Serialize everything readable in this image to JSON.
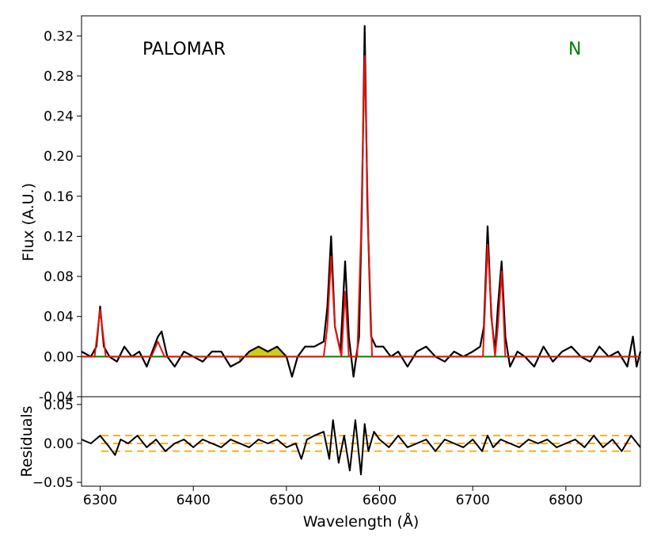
{
  "chart_data": [
    {
      "type": "line",
      "panel": "main",
      "xlabel": "",
      "ylabel": "Flux (A.U.)",
      "xlim": [
        6280,
        6880
      ],
      "ylim": [
        -0.04,
        0.34
      ],
      "yticks": [
        -0.04,
        0.0,
        0.04,
        0.08,
        0.12,
        0.16,
        0.2,
        0.24,
        0.28,
        0.32
      ],
      "ytick_labels": [
        "-0.04",
        "0.00",
        "0.04",
        "0.08",
        "0.12",
        "0.16",
        "0.20",
        "0.24",
        "0.28",
        "0.32"
      ],
      "annotations": [
        {
          "text": "PALOMAR",
          "color": "#000000"
        },
        {
          "text": "N",
          "color": "#008000"
        }
      ],
      "masked_region": {
        "x_range": [
          6450,
          6500
        ],
        "fill_color": "#c8c800",
        "edge_color": "#808000"
      },
      "series": [
        {
          "role": "observed",
          "color": "#000000",
          "x": [
            6280,
            6290,
            6296,
            6300,
            6304,
            6310,
            6318,
            6326,
            6334,
            6342,
            6350,
            6356,
            6362,
            6366,
            6372,
            6380,
            6390,
            6400,
            6410,
            6420,
            6430,
            6440,
            6450,
            6460,
            6470,
            6480,
            6490,
            6500,
            6506,
            6512,
            6520,
            6530,
            6540,
            6544,
            6548,
            6552,
            6558,
            6563,
            6567,
            6572,
            6578,
            6581,
            6584,
            6587,
            6591,
            6596,
            6604,
            6612,
            6620,
            6630,
            6640,
            6650,
            6660,
            6670,
            6680,
            6690,
            6700,
            6708,
            6712,
            6716,
            6720,
            6724,
            6727,
            6731,
            6735,
            6740,
            6748,
            6756,
            6766,
            6776,
            6786,
            6796,
            6806,
            6816,
            6826,
            6836,
            6846,
            6856,
            6866,
            6872,
            6876,
            6880
          ],
          "y": [
            0.005,
            0.0,
            0.01,
            0.05,
            0.01,
            0.0,
            -0.005,
            0.01,
            0.0,
            0.005,
            -0.01,
            0.005,
            0.02,
            0.025,
            0.0,
            -0.01,
            0.005,
            0.0,
            -0.005,
            0.005,
            0.005,
            -0.01,
            -0.005,
            0.005,
            0.01,
            0.005,
            0.01,
            0.0,
            -0.02,
            0.0,
            0.01,
            0.01,
            0.015,
            0.05,
            0.12,
            0.03,
            0.005,
            0.095,
            0.02,
            -0.02,
            0.02,
            0.15,
            0.33,
            0.15,
            0.02,
            0.01,
            0.01,
            0.0,
            0.005,
            -0.01,
            0.005,
            0.01,
            0.0,
            -0.005,
            0.005,
            0.0,
            0.005,
            0.01,
            0.03,
            0.13,
            0.04,
            0.005,
            0.05,
            0.095,
            0.02,
            -0.01,
            0.005,
            0.0,
            -0.01,
            0.01,
            -0.005,
            0.005,
            0.01,
            0.0,
            -0.005,
            0.01,
            0.0,
            0.005,
            -0.01,
            0.02,
            -0.01,
            0.005
          ]
        },
        {
          "role": "model",
          "color": "#e8120c",
          "x": [
            6280,
            6294,
            6300,
            6306,
            6320,
            6355,
            6362,
            6369,
            6400,
            6500,
            6540,
            6544,
            6548,
            6552,
            6559,
            6563,
            6567,
            6576,
            6580,
            6584,
            6588,
            6592,
            6620,
            6700,
            6711,
            6716,
            6721,
            6724,
            6727,
            6731,
            6735,
            6745,
            6880
          ],
          "y": [
            0.0,
            0.0,
            0.047,
            0.0,
            0.0,
            0.0,
            0.015,
            0.0,
            0.0,
            0.0,
            0.0,
            0.03,
            0.1,
            0.03,
            0.0,
            0.065,
            0.0,
            0.0,
            0.12,
            0.3,
            0.12,
            0.0,
            0.0,
            0.0,
            0.0,
            0.112,
            0.03,
            0.0,
            0.03,
            0.085,
            0.0,
            0.0,
            0.0
          ]
        },
        {
          "role": "continuum",
          "color": "#008000",
          "x": [
            6280,
            6880
          ],
          "y": [
            0.0,
            0.0
          ]
        }
      ]
    },
    {
      "type": "line",
      "panel": "residuals",
      "xlabel": "Wavelength (Å)",
      "ylabel": "Residuals",
      "xlim": [
        6280,
        6880
      ],
      "ylim": [
        -0.055,
        0.06
      ],
      "xticks": [
        6300,
        6400,
        6500,
        6600,
        6700,
        6800
      ],
      "xtick_labels": [
        "6300",
        "6400",
        "6500",
        "6600",
        "6700",
        "6800"
      ],
      "yticks": [
        -0.05,
        0.0,
        0.05
      ],
      "ytick_labels": [
        "−0.05",
        "0.00",
        "0.05"
      ],
      "threshold_lines": {
        "values": [
          0.01,
          0.0,
          -0.01
        ],
        "color": "#ffa500",
        "style": "dashed"
      },
      "series": [
        {
          "role": "residuals",
          "color": "#000000",
          "x": [
            6280,
            6290,
            6300,
            6310,
            6316,
            6322,
            6330,
            6340,
            6350,
            6360,
            6370,
            6380,
            6390,
            6400,
            6410,
            6420,
            6430,
            6440,
            6450,
            6460,
            6470,
            6480,
            6490,
            6500,
            6510,
            6516,
            6522,
            6530,
            6540,
            6546,
            6550,
            6556,
            6562,
            6568,
            6574,
            6580,
            6584,
            6588,
            6594,
            6600,
            6610,
            6620,
            6630,
            6640,
            6650,
            6660,
            6670,
            6680,
            6690,
            6700,
            6710,
            6716,
            6722,
            6730,
            6740,
            6750,
            6760,
            6770,
            6780,
            6790,
            6800,
            6810,
            6820,
            6830,
            6840,
            6850,
            6860,
            6870,
            6880
          ],
          "y": [
            0.005,
            0.0,
            0.01,
            -0.005,
            -0.015,
            0.005,
            0.0,
            0.01,
            -0.005,
            0.005,
            -0.01,
            0.0,
            0.005,
            -0.005,
            0.005,
            0.0,
            -0.005,
            0.005,
            0.0,
            -0.005,
            0.005,
            0.0,
            0.005,
            -0.005,
            0.0,
            -0.02,
            0.005,
            0.01,
            0.015,
            -0.02,
            0.03,
            -0.025,
            0.01,
            -0.035,
            0.03,
            -0.04,
            0.025,
            -0.01,
            0.015,
            0.005,
            -0.005,
            0.01,
            -0.005,
            0.0,
            0.005,
            -0.01,
            0.005,
            0.0,
            -0.005,
            0.005,
            -0.01,
            0.01,
            -0.005,
            0.005,
            0.0,
            -0.005,
            0.005,
            0.0,
            0.005,
            -0.005,
            0.0,
            0.005,
            -0.005,
            0.01,
            -0.005,
            0.005,
            -0.01,
            0.01,
            -0.005
          ]
        }
      ]
    }
  ]
}
